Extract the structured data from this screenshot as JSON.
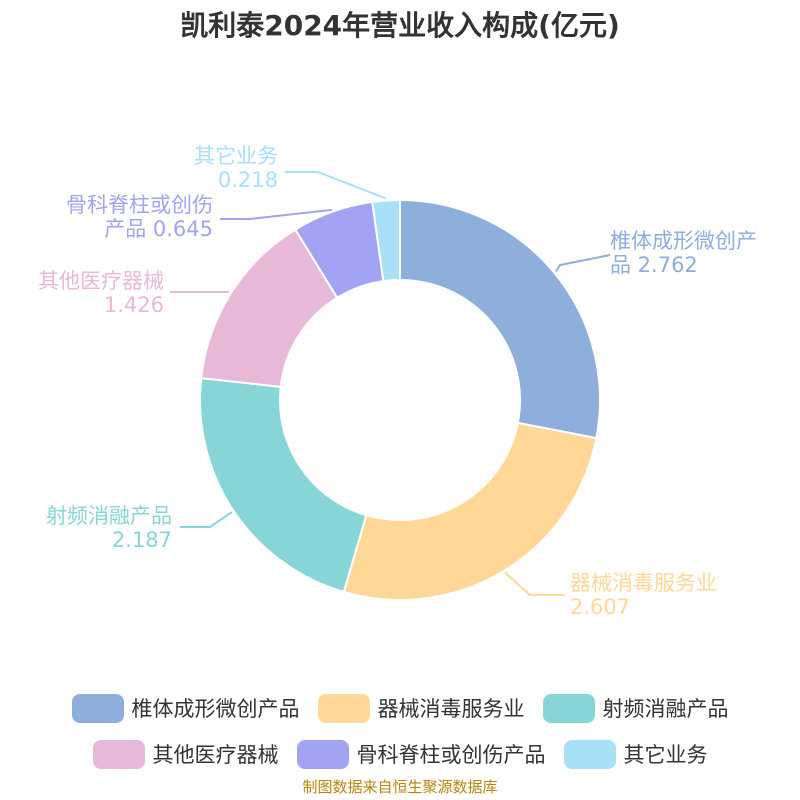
{
  "chart_data": {
    "type": "pie",
    "variant": "donut",
    "title": "凯利泰2024年营业收入构成(亿元)",
    "slices": [
      {
        "name": "椎体成形微创产品",
        "label_lines": [
          "椎体成形微创产",
          "品 2.762"
        ],
        "value": 2.762,
        "color": "#8eaedc"
      },
      {
        "name": "器械消毒服务业",
        "label_lines": [
          "器械消毒服务业",
          "2.607"
        ],
        "value": 2.607,
        "color": "#ffd898"
      },
      {
        "name": "射频消融产品",
        "label_lines": [
          "射频消融产品",
          "2.187"
        ],
        "value": 2.187,
        "color": "#86d6d8"
      },
      {
        "name": "其他医疗器械",
        "label_lines": [
          "其他医疗器械",
          "1.426"
        ],
        "value": 1.426,
        "color": "#e8b8d8"
      },
      {
        "name": "骨科脊柱或创伤产品",
        "label_lines": [
          "骨科脊柱或创伤",
          "产品 0.645"
        ],
        "value": 0.645,
        "color": "#a3a3f5"
      },
      {
        "name": "其它业务",
        "label_lines": [
          "其它业务",
          "0.218"
        ],
        "value": 0.218,
        "color": "#a8e0f8"
      }
    ],
    "legend": {
      "position": "bottom",
      "rows": [
        [
          0,
          1,
          2
        ],
        [
          3,
          4,
          5
        ]
      ]
    }
  },
  "source_note": "制图数据来自恒生聚源数据库"
}
